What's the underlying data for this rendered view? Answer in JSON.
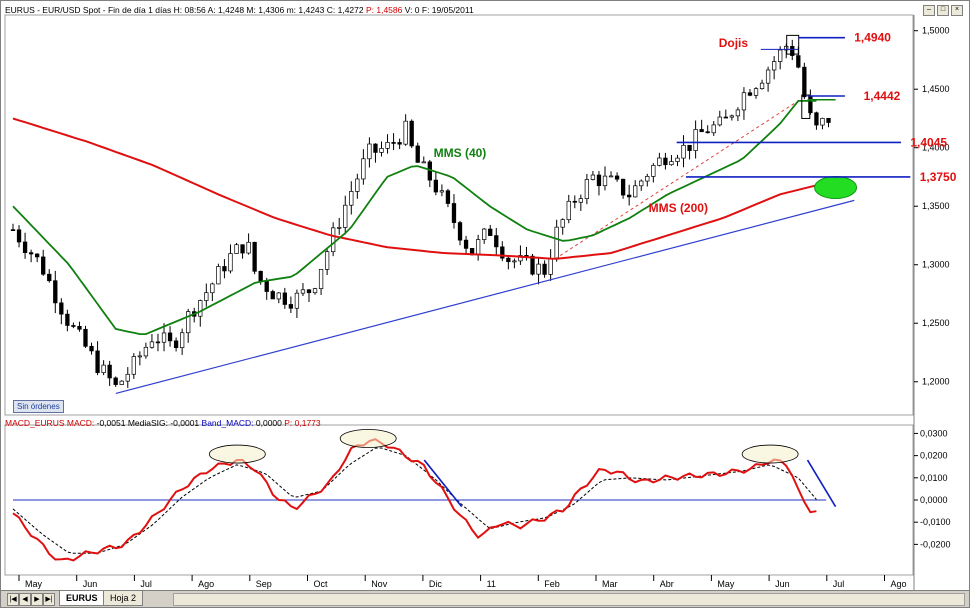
{
  "window": {
    "header_parts": [
      {
        "text": "EURUS - EUR/USD Spot - Fin de día 1 días  H: 08:56  A: 1,4248  M: 1,4306  m: 1,4243  C: 1,4272  ",
        "color": "#000000"
      },
      {
        "text": "P: 1,4586",
        "color": "#d00000"
      },
      {
        "text": "  V: 0  F: 19/05/2011",
        "color": "#000000"
      }
    ],
    "macd_parts": [
      {
        "text": "MACD_EURUS ",
        "color": "#d00000"
      },
      {
        "text": "MACD: ",
        "color": "#d00000"
      },
      {
        "text": "-0,0051  MediaSIG: -0,0001  ",
        "color": "#000000"
      },
      {
        "text": "Band_MACD: ",
        "color": "#0000c0"
      },
      {
        "text": "0,0000  ",
        "color": "#000000"
      },
      {
        "text": "P: 0,1773",
        "color": "#d00000"
      }
    ],
    "sin_ordenes": "Sin órdenes",
    "tabs": [
      "EURUS",
      "Hoja 2"
    ]
  },
  "chart_data": [
    {
      "type": "candlestick",
      "instrument": "EUR/USD",
      "ylim": [
        1.175,
        1.51
      ],
      "yticks": [
        1.2,
        1.25,
        1.3,
        1.35,
        1.4,
        1.45,
        1.5
      ],
      "ytick_labels": [
        "1,2000",
        "1,2500",
        "1,3000",
        "1,3500",
        "1,4000",
        "1,4500",
        "1,5000"
      ],
      "months": [
        "May",
        "Jun",
        "Jul",
        "Ago",
        "Sep",
        "Oct",
        "Nov",
        "Dic",
        "11",
        "Feb",
        "Mar",
        "Abr",
        "May",
        "Jun",
        "Jul",
        "Ago"
      ],
      "price_anchors": [
        [
          0,
          1.33
        ],
        [
          3,
          1.3
        ],
        [
          6,
          1.25
        ],
        [
          9,
          1.215
        ],
        [
          11,
          1.195
        ],
        [
          13,
          1.215
        ],
        [
          15,
          1.24
        ],
        [
          17,
          1.23
        ],
        [
          19,
          1.26
        ],
        [
          21,
          1.28
        ],
        [
          23,
          1.305
        ],
        [
          25,
          1.32
        ],
        [
          26,
          1.29
        ],
        [
          28,
          1.275
        ],
        [
          30,
          1.27
        ],
        [
          32,
          1.28
        ],
        [
          34,
          1.32
        ],
        [
          36,
          1.36
        ],
        [
          38,
          1.395
        ],
        [
          40,
          1.4
        ],
        [
          42,
          1.415
        ],
        [
          43,
          1.39
        ],
        [
          45,
          1.37
        ],
        [
          47,
          1.34
        ],
        [
          49,
          1.31
        ],
        [
          51,
          1.33
        ],
        [
          53,
          1.305
        ],
        [
          55,
          1.3
        ],
        [
          57,
          1.295
        ],
        [
          58,
          1.325
        ],
        [
          60,
          1.355
        ],
        [
          62,
          1.375
        ],
        [
          64,
          1.37
        ],
        [
          66,
          1.36
        ],
        [
          68,
          1.38
        ],
        [
          70,
          1.395
        ],
        [
          72,
          1.4
        ],
        [
          74,
          1.415
        ],
        [
          76,
          1.42
        ],
        [
          78,
          1.445
        ],
        [
          80,
          1.46
        ],
        [
          82,
          1.48
        ],
        [
          83,
          1.49
        ],
        [
          84,
          1.47
        ],
        [
          85,
          1.43
        ],
        [
          86,
          1.415
        ],
        [
          87,
          1.425
        ]
      ],
      "mms40_anchors": [
        [
          0,
          1.35
        ],
        [
          6,
          1.3
        ],
        [
          11,
          1.245
        ],
        [
          14,
          1.24
        ],
        [
          20,
          1.26
        ],
        [
          26,
          1.285
        ],
        [
          30,
          1.29
        ],
        [
          36,
          1.33
        ],
        [
          40,
          1.375
        ],
        [
          43,
          1.385
        ],
        [
          47,
          1.375
        ],
        [
          51,
          1.35
        ],
        [
          55,
          1.33
        ],
        [
          59,
          1.32
        ],
        [
          62,
          1.325
        ],
        [
          66,
          1.34
        ],
        [
          70,
          1.36
        ],
        [
          74,
          1.375
        ],
        [
          78,
          1.39
        ],
        [
          82,
          1.42
        ],
        [
          84,
          1.44
        ],
        [
          86,
          1.44
        ]
      ],
      "mms200_anchors": [
        [
          0,
          1.425
        ],
        [
          8,
          1.405
        ],
        [
          15,
          1.385
        ],
        [
          22,
          1.36
        ],
        [
          28,
          1.34
        ],
        [
          34,
          1.325
        ],
        [
          40,
          1.315
        ],
        [
          46,
          1.31
        ],
        [
          52,
          1.308
        ],
        [
          58,
          1.305
        ],
        [
          64,
          1.31
        ],
        [
          70,
          1.325
        ],
        [
          76,
          1.34
        ],
        [
          82,
          1.36
        ],
        [
          87,
          1.37
        ]
      ],
      "trendline": [
        [
          11,
          1.19
        ],
        [
          90,
          1.355
        ]
      ],
      "dashed_line": [
        [
          58,
          1.305
        ],
        [
          84,
          1.44
        ]
      ],
      "levels": [
        {
          "label": "1,4940",
          "value": 1.494,
          "from": 84,
          "to": 89,
          "label_at": 90
        },
        {
          "label": "1,4442",
          "value": 1.4442,
          "from": 85,
          "to": 89,
          "label_at": 91
        },
        {
          "label": "1,4045",
          "value": 1.4045,
          "from": 71,
          "to": 95,
          "label_at": 96
        },
        {
          "label": "1,3750",
          "value": 1.375,
          "from": 72,
          "to": 96,
          "label_at": 97
        }
      ],
      "annotations": {
        "dojis": "Dojis",
        "mms40": "MMS (40)",
        "mms200": "MMS (200)"
      }
    },
    {
      "type": "line",
      "title": "MACD_EURUS",
      "ylim": [
        -0.032,
        0.032
      ],
      "yticks": [
        0.03,
        0.02,
        0.01,
        0.0,
        -0.01,
        -0.02
      ],
      "ytick_labels": [
        "0,0300",
        "0,0200",
        "0,0100",
        "0,0000",
        "-0,0100",
        "-0,0200"
      ],
      "macd_anchors": [
        [
          0,
          -0.006
        ],
        [
          3,
          -0.02
        ],
        [
          5,
          -0.028
        ],
        [
          8,
          -0.024
        ],
        [
          12,
          -0.02
        ],
        [
          15,
          -0.008
        ],
        [
          18,
          0.005
        ],
        [
          21,
          0.014
        ],
        [
          24,
          0.018
        ],
        [
          26,
          0.014
        ],
        [
          28,
          0.002
        ],
        [
          30,
          -0.004
        ],
        [
          32,
          0.002
        ],
        [
          34,
          0.008
        ],
        [
          36,
          0.022
        ],
        [
          38,
          0.027
        ],
        [
          40,
          0.025
        ],
        [
          42,
          0.02
        ],
        [
          44,
          0.015
        ],
        [
          46,
          0.004
        ],
        [
          48,
          -0.008
        ],
        [
          50,
          -0.017
        ],
        [
          52,
          -0.01
        ],
        [
          54,
          -0.012
        ],
        [
          57,
          -0.008
        ],
        [
          59,
          -0.004
        ],
        [
          61,
          0.006
        ],
        [
          63,
          0.014
        ],
        [
          65,
          0.012
        ],
        [
          67,
          0.008
        ],
        [
          70,
          0.01
        ],
        [
          73,
          0.011
        ],
        [
          76,
          0.012
        ],
        [
          79,
          0.014
        ],
        [
          81,
          0.018
        ],
        [
          83,
          0.016
        ],
        [
          84,
          0.004
        ],
        [
          85,
          -0.004
        ],
        [
          86,
          -0.005
        ]
      ],
      "signal_anchors": [
        [
          0,
          -0.004
        ],
        [
          3,
          -0.015
        ],
        [
          6,
          -0.024
        ],
        [
          9,
          -0.024
        ],
        [
          12,
          -0.02
        ],
        [
          15,
          -0.011
        ],
        [
          18,
          0.001
        ],
        [
          21,
          0.01
        ],
        [
          24,
          0.016
        ],
        [
          27,
          0.012
        ],
        [
          30,
          0.001
        ],
        [
          33,
          0.004
        ],
        [
          36,
          0.016
        ],
        [
          39,
          0.024
        ],
        [
          42,
          0.02
        ],
        [
          45,
          0.01
        ],
        [
          48,
          -0.002
        ],
        [
          51,
          -0.013
        ],
        [
          54,
          -0.01
        ],
        [
          57,
          -0.008
        ],
        [
          60,
          -0.002
        ],
        [
          63,
          0.009
        ],
        [
          66,
          0.01
        ],
        [
          70,
          0.009
        ],
        [
          74,
          0.011
        ],
        [
          78,
          0.013
        ],
        [
          81,
          0.016
        ],
        [
          84,
          0.01
        ],
        [
          86,
          0.0
        ]
      ],
      "band": 0.0,
      "ellipses": [
        [
          24,
          0.018
        ],
        [
          38,
          0.025
        ],
        [
          81,
          0.018
        ]
      ],
      "slope_lines": [
        [
          [
            44,
            0.018
          ],
          [
            48,
            -0.003
          ]
        ],
        [
          [
            85,
            0.018
          ],
          [
            88,
            -0.003
          ]
        ]
      ]
    }
  ]
}
